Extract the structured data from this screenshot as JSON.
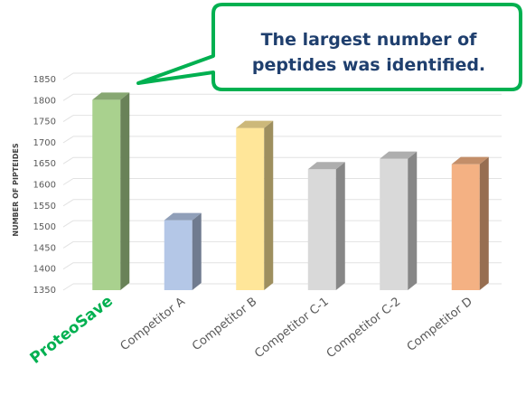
{
  "chart_data": {
    "type": "bar",
    "ylabel": "NUMBER OF PIPTEIDES",
    "ylim": [
      1350,
      1850
    ],
    "yticks": [
      1350,
      1400,
      1450,
      1500,
      1550,
      1600,
      1650,
      1700,
      1750,
      1800,
      1850
    ],
    "categories": [
      "ProteoSave",
      "Competitor A",
      "Competitor B",
      "Competitor C-1",
      "Competitor C-2",
      "Competitor D"
    ],
    "values": [
      1802,
      1516,
      1735,
      1637,
      1662,
      1649
    ],
    "colors": [
      "#a9d18e",
      "#b4c7e7",
      "#ffe699",
      "#d9d9d9",
      "#d9d9d9",
      "#f4b183"
    ],
    "highlight_category": "ProteoSave",
    "highlight_color": "#00b050",
    "grid": true,
    "style": "3d-column"
  },
  "callout": {
    "line1": "The largest number of",
    "line2": "peptides was identified.",
    "border_color": "#00b050"
  }
}
